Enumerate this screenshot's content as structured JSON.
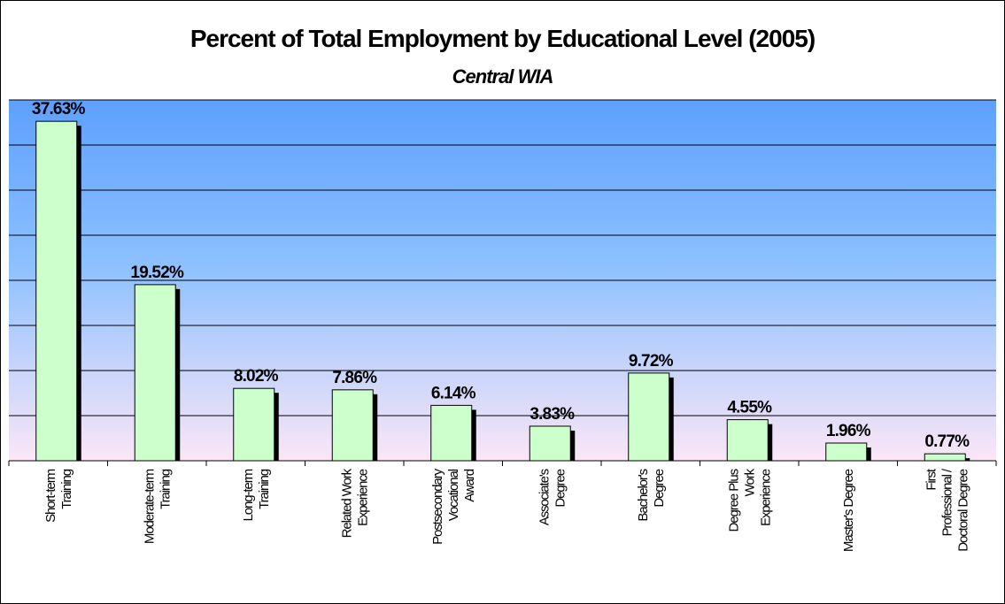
{
  "chart_data": {
    "type": "bar",
    "title": "Percent of Total Employment by Educational Level (2005)",
    "subtitle": "Central WIA",
    "categories": [
      [
        "Short-term",
        "Training"
      ],
      [
        "Moderate-term",
        "Training"
      ],
      [
        "Long-term",
        "Training"
      ],
      [
        "Related Work",
        "Experience"
      ],
      [
        "Postsecondary",
        "Vocational",
        "Award"
      ],
      [
        "Associate's",
        "Degree"
      ],
      [
        "Bachelor's",
        "Degree"
      ],
      [
        "Degree Plus",
        "Work",
        "Experience"
      ],
      [
        "Master's Degree"
      ],
      [
        "First",
        "Professional /",
        "Doctoral Degree"
      ]
    ],
    "values": [
      37.63,
      19.52,
      8.02,
      7.86,
      6.14,
      3.83,
      9.72,
      4.55,
      1.96,
      0.77
    ],
    "value_labels": [
      "37.63%",
      "19.52%",
      "8.02%",
      "7.86%",
      "6.14%",
      "3.83%",
      "9.72%",
      "4.55%",
      "1.96%",
      "0.77%"
    ],
    "ylim": [
      0,
      40
    ],
    "grid": true,
    "colors": {
      "bar_fill": "#ccffcc",
      "bar_stroke": "#000000",
      "bar_shadow": "#000000",
      "grid": "#000000",
      "bg_top": "#5ea0ff",
      "bg_mid": "#8cc0ff",
      "bg_bottom": "#fbe6f7"
    }
  }
}
